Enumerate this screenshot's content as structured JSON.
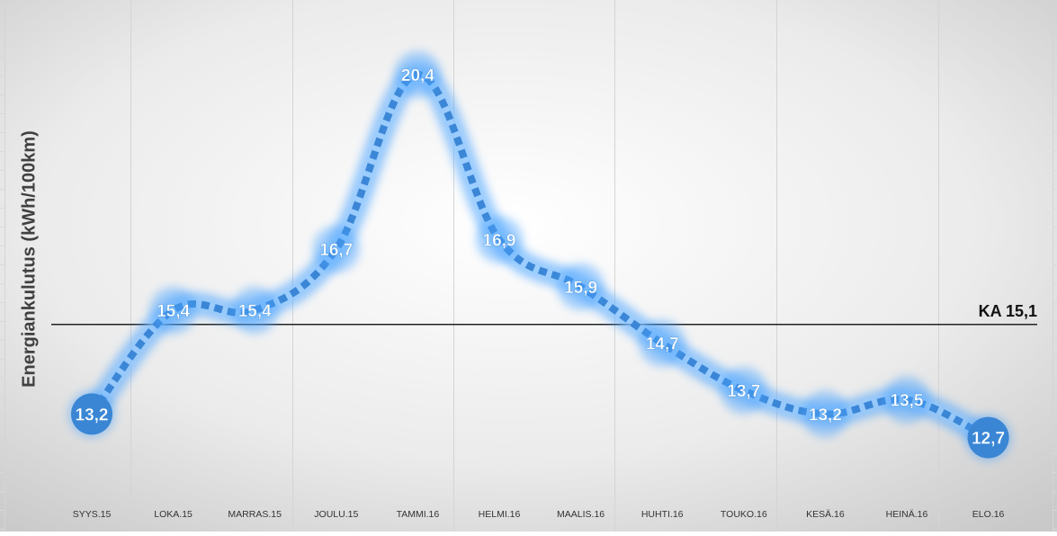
{
  "chart_data": {
    "type": "line",
    "title": "",
    "xlabel": "",
    "ylabel": "Energiankulutus (kWh/100km)",
    "categories": [
      "SYYS.15",
      "LOKA.15",
      "MARRAS.15",
      "JOULU.15",
      "TAMMI.16",
      "HELMI.16",
      "MAALIS.16",
      "HUHTI.16",
      "TOUKO.16",
      "KESÄ.16",
      "HEINÄ.16",
      "ELO.16"
    ],
    "series": [
      {
        "values": [
          13.2,
          15.4,
          15.4,
          16.7,
          20.4,
          16.9,
          15.9,
          14.7,
          13.7,
          13.2,
          13.5,
          12.7
        ],
        "labels": [
          "13,2",
          "15,4",
          "15,4",
          "16,7",
          "20,4",
          "16,9",
          "15,9",
          "14,7",
          "13,7",
          "13,2",
          "13,5",
          "12,7"
        ],
        "color": "#3b86d6",
        "glow_color": "#4aa3ff",
        "line_style": "dotted"
      }
    ],
    "reference_line": {
      "value": 15.1,
      "label": "KA 15,1",
      "color": "#222222"
    },
    "ylim": [
      11.3,
      21.6
    ],
    "grid": false,
    "legend": "none",
    "background": "radial-gradient white to light gray"
  }
}
